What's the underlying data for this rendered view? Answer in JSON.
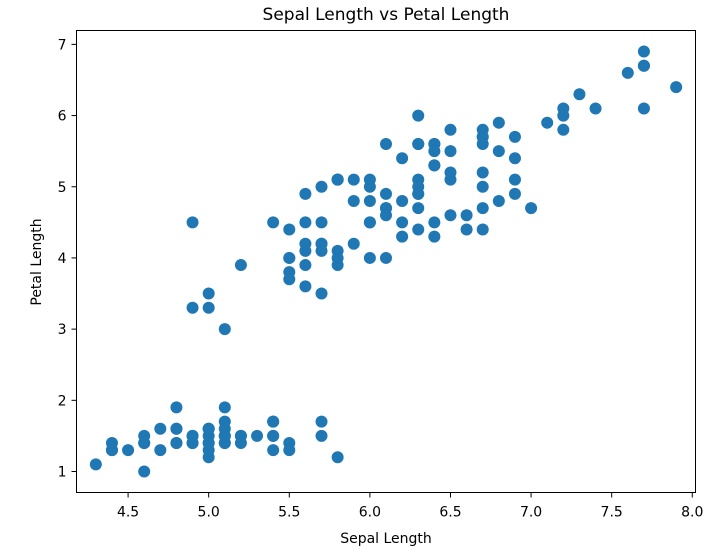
{
  "chart_data": {
    "type": "scatter",
    "title": "Sepal Length vs Petal Length",
    "xlabel": "Sepal Length",
    "ylabel": "Petal Length",
    "xlim": [
      4.18,
      8.02
    ],
    "ylim": [
      0.705,
      7.195
    ],
    "xticks": [
      "4.5",
      "5.0",
      "5.5",
      "6.0",
      "6.5",
      "7.0",
      "7.5",
      "8.0"
    ],
    "yticks": [
      "1",
      "2",
      "3",
      "4",
      "5",
      "6",
      "7"
    ],
    "grid": false,
    "color": "#1f77b4",
    "points": [
      [
        5.1,
        1.4
      ],
      [
        4.9,
        1.4
      ],
      [
        4.7,
        1.3
      ],
      [
        4.6,
        1.5
      ],
      [
        5.0,
        1.4
      ],
      [
        5.4,
        1.7
      ],
      [
        4.6,
        1.4
      ],
      [
        5.0,
        1.5
      ],
      [
        4.4,
        1.4
      ],
      [
        4.9,
        1.5
      ],
      [
        5.4,
        1.5
      ],
      [
        4.8,
        1.6
      ],
      [
        4.8,
        1.4
      ],
      [
        4.3,
        1.1
      ],
      [
        5.8,
        1.2
      ],
      [
        5.7,
        1.5
      ],
      [
        5.4,
        1.3
      ],
      [
        5.1,
        1.4
      ],
      [
        5.7,
        1.7
      ],
      [
        5.1,
        1.5
      ],
      [
        5.4,
        1.7
      ],
      [
        5.1,
        1.5
      ],
      [
        4.6,
        1.0
      ],
      [
        5.1,
        1.7
      ],
      [
        4.8,
        1.9
      ],
      [
        5.0,
        1.6
      ],
      [
        5.0,
        1.6
      ],
      [
        5.2,
        1.5
      ],
      [
        5.2,
        1.4
      ],
      [
        4.7,
        1.6
      ],
      [
        4.8,
        1.6
      ],
      [
        5.4,
        1.5
      ],
      [
        5.2,
        1.5
      ],
      [
        5.5,
        1.4
      ],
      [
        4.9,
        1.5
      ],
      [
        5.0,
        1.2
      ],
      [
        5.5,
        1.3
      ],
      [
        4.9,
        1.4
      ],
      [
        4.4,
        1.3
      ],
      [
        5.1,
        1.5
      ],
      [
        5.0,
        1.3
      ],
      [
        4.5,
        1.3
      ],
      [
        4.4,
        1.3
      ],
      [
        5.0,
        1.6
      ],
      [
        5.1,
        1.9
      ],
      [
        4.8,
        1.4
      ],
      [
        5.1,
        1.6
      ],
      [
        4.6,
        1.4
      ],
      [
        5.3,
        1.5
      ],
      [
        5.0,
        1.4
      ],
      [
        7.0,
        4.7
      ],
      [
        6.4,
        4.5
      ],
      [
        6.9,
        4.9
      ],
      [
        5.5,
        4.0
      ],
      [
        6.5,
        4.6
      ],
      [
        5.7,
        4.5
      ],
      [
        6.3,
        4.7
      ],
      [
        4.9,
        3.3
      ],
      [
        6.6,
        4.6
      ],
      [
        5.2,
        3.9
      ],
      [
        5.0,
        3.5
      ],
      [
        5.9,
        4.2
      ],
      [
        6.0,
        4.0
      ],
      [
        6.1,
        4.7
      ],
      [
        5.6,
        3.6
      ],
      [
        6.7,
        4.4
      ],
      [
        5.6,
        4.5
      ],
      [
        5.8,
        4.1
      ],
      [
        6.2,
        4.5
      ],
      [
        5.6,
        3.9
      ],
      [
        5.9,
        4.8
      ],
      [
        6.1,
        4.0
      ],
      [
        6.3,
        4.9
      ],
      [
        6.1,
        4.7
      ],
      [
        6.4,
        4.3
      ],
      [
        6.6,
        4.4
      ],
      [
        6.8,
        4.8
      ],
      [
        6.7,
        5.0
      ],
      [
        6.0,
        4.5
      ],
      [
        5.7,
        3.5
      ],
      [
        5.5,
        3.8
      ],
      [
        5.5,
        3.7
      ],
      [
        5.8,
        3.9
      ],
      [
        6.0,
        5.1
      ],
      [
        5.4,
        4.5
      ],
      [
        6.0,
        4.5
      ],
      [
        6.7,
        4.7
      ],
      [
        6.3,
        4.4
      ],
      [
        5.6,
        4.1
      ],
      [
        5.5,
        4.0
      ],
      [
        5.5,
        4.4
      ],
      [
        6.1,
        4.6
      ],
      [
        5.8,
        4.0
      ],
      [
        5.0,
        3.3
      ],
      [
        5.6,
        4.2
      ],
      [
        5.7,
        4.2
      ],
      [
        5.7,
        4.2
      ],
      [
        6.2,
        4.3
      ],
      [
        5.1,
        3.0
      ],
      [
        5.7,
        4.1
      ],
      [
        6.3,
        6.0
      ],
      [
        5.8,
        5.1
      ],
      [
        7.1,
        5.9
      ],
      [
        6.3,
        5.6
      ],
      [
        6.5,
        5.8
      ],
      [
        7.6,
        6.6
      ],
      [
        4.9,
        4.5
      ],
      [
        7.3,
        6.3
      ],
      [
        6.7,
        5.8
      ],
      [
        7.2,
        6.1
      ],
      [
        6.5,
        5.1
      ],
      [
        6.4,
        5.3
      ],
      [
        6.8,
        5.5
      ],
      [
        5.7,
        5.0
      ],
      [
        5.8,
        5.1
      ],
      [
        6.4,
        5.3
      ],
      [
        6.5,
        5.5
      ],
      [
        7.7,
        6.7
      ],
      [
        7.7,
        6.9
      ],
      [
        6.0,
        5.0
      ],
      [
        6.9,
        5.7
      ],
      [
        5.6,
        4.9
      ],
      [
        7.7,
        6.7
      ],
      [
        6.3,
        4.9
      ],
      [
        6.7,
        5.7
      ],
      [
        7.2,
        6.0
      ],
      [
        6.2,
        4.8
      ],
      [
        6.1,
        4.9
      ],
      [
        6.4,
        5.6
      ],
      [
        7.2,
        5.8
      ],
      [
        7.4,
        6.1
      ],
      [
        7.9,
        6.4
      ],
      [
        6.4,
        5.6
      ],
      [
        6.3,
        5.1
      ],
      [
        6.1,
        5.6
      ],
      [
        7.7,
        6.1
      ],
      [
        6.3,
        5.6
      ],
      [
        6.4,
        5.5
      ],
      [
        6.0,
        4.8
      ],
      [
        6.9,
        5.4
      ],
      [
        6.7,
        5.6
      ],
      [
        6.9,
        5.1
      ],
      [
        5.8,
        5.1
      ],
      [
        6.8,
        5.9
      ],
      [
        6.7,
        5.7
      ],
      [
        6.7,
        5.2
      ],
      [
        6.3,
        5.0
      ],
      [
        6.5,
        5.2
      ],
      [
        6.2,
        5.4
      ],
      [
        5.9,
        5.1
      ]
    ]
  }
}
